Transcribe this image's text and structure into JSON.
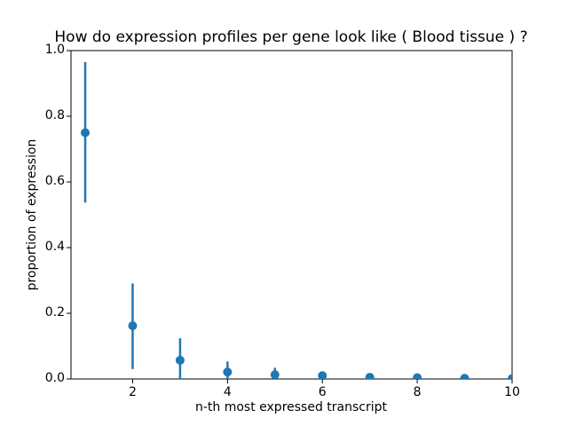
{
  "chart_data": {
    "type": "scatter",
    "title": "How do expression profiles per gene look like ( Blood tissue ) ?",
    "xlabel": "n-th most expressed transcript",
    "ylabel": "proportion of expression",
    "x": [
      1,
      2,
      3,
      4,
      5,
      6,
      7,
      8,
      9,
      10
    ],
    "y": [
      0.75,
      0.162,
      0.057,
      0.021,
      0.013,
      0.01,
      0.005,
      0.004,
      0.002,
      0.001
    ],
    "yerr_low": [
      0.537,
      0.03,
      0.0,
      0.0,
      0.0,
      0.0,
      0.0,
      0.0,
      0.0,
      0.0
    ],
    "yerr_high": [
      0.965,
      0.291,
      0.124,
      0.053,
      0.034,
      0.02,
      0.013,
      0.009,
      0.006,
      0.003
    ],
    "xlim": [
      0.7,
      10
    ],
    "ylim": [
      0.0,
      1.0
    ],
    "x_ticks": [
      "2",
      "4",
      "6",
      "8",
      "10"
    ],
    "y_ticks": [
      "0.0",
      "0.2",
      "0.4",
      "0.6",
      "0.8",
      "1.0"
    ],
    "grid": false,
    "legend": null,
    "marker_color": "#1f77b4",
    "spine_color": "#000000",
    "background": "#ffffff"
  }
}
